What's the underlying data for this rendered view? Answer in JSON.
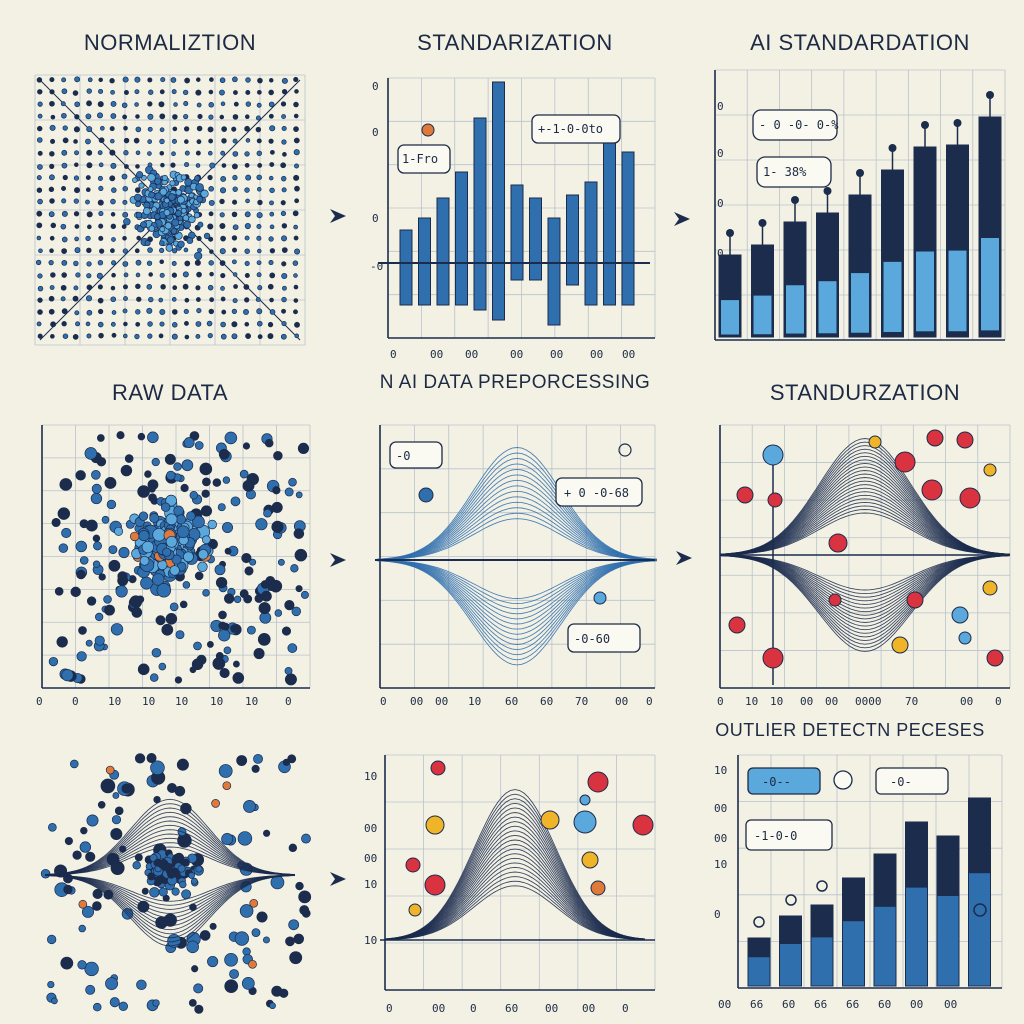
{
  "titles": {
    "normalization": "NORMALIZTION",
    "standardization_top": "STANDARIZATION",
    "ai_standardization": "AI STANDARDATION",
    "raw_data": "RAW DATA",
    "preprocessing": "N AI DATA PREPORCESSING",
    "standurzation": "STANDURZATION",
    "outlier": "OUTLIER DETECTN PECESES"
  },
  "callouts": {
    "top_middle_left": "1-Fro",
    "top_middle_right": "+-1-0-0to",
    "top_right_upper": "- 0 -0- 0-%",
    "top_right_lower": "1- 38%",
    "mid_middle_left": "-0",
    "mid_middle_right": "+ 0 -0-68",
    "mid_middle_bottom": "-0-60",
    "bottom_right_upper_left": "-0--",
    "bottom_right_upper_right": "-0-",
    "bottom_right_lower": "-1-0-0"
  },
  "axes": {
    "top_middle_y": [
      "0",
      "0",
      "0",
      "-0"
    ],
    "top_middle_x": [
      "0",
      "00",
      "00",
      "00",
      "00",
      "00",
      "00"
    ],
    "mid_middle_x": [
      "0",
      "00",
      "00",
      "10",
      "60",
      "60",
      "70",
      "00",
      "0"
    ],
    "mid_right_x": [
      "0",
      "10",
      "10",
      "00",
      "00",
      "0000",
      "70",
      "00",
      "0"
    ],
    "mid_left_x": [
      "0",
      "0",
      "10",
      "10",
      "10",
      "10",
      "10",
      "0"
    ],
    "bottom_middle_y": [
      "10",
      "00",
      "00",
      "10",
      "10"
    ],
    "bottom_middle_x": [
      "0",
      "00",
      "0",
      "60",
      "00",
      "00",
      "0"
    ],
    "bottom_right_x": [
      "00",
      "66",
      "60",
      "66",
      "66",
      "60",
      "00",
      "00"
    ],
    "bottom_right_y": [
      "10",
      "00",
      "00",
      "10",
      "0"
    ],
    "top_right_y": [
      "0",
      "0",
      "0",
      "0"
    ]
  },
  "colors": {
    "dark_navy": "#1b2c4d",
    "mid_blue": "#2f6fae",
    "light_blue": "#5aa8dc",
    "red": "#d9333f",
    "orange": "#e07a3a",
    "yellow": "#f0b429",
    "grid": "#b8c2cc",
    "background": "#f3f1e4"
  }
}
